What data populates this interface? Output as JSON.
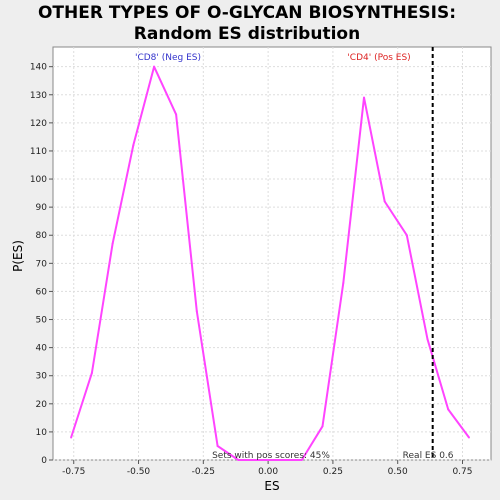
{
  "chart_data": {
    "type": "line",
    "title_lines": [
      "OTHER TYPES OF O-GLYCAN BIOSYNTHESIS:",
      "Random ES distribution"
    ],
    "xlabel": "ES",
    "ylabel": "P(ES)",
    "xlim": [
      -0.83,
      0.86
    ],
    "ylim": [
      0,
      147
    ],
    "x_ticks": [
      -0.75,
      -0.5,
      -0.25,
      0.0,
      0.25,
      0.5,
      0.75
    ],
    "x_tick_labels": [
      "-0.75",
      "-0.50",
      "-0.25",
      "0.00",
      "0.25",
      "0.50",
      "0.75"
    ],
    "y_ticks": [
      0,
      10,
      20,
      30,
      40,
      50,
      60,
      70,
      80,
      90,
      100,
      110,
      120,
      130,
      140
    ],
    "y_tick_labels": [
      "0",
      "10",
      "20",
      "30",
      "40",
      "50",
      "60",
      "70",
      "80",
      "90",
      "100",
      "110",
      "120",
      "130",
      "140"
    ],
    "grid": true,
    "series": [
      {
        "color": "#ff44ff",
        "x": [
          -0.76,
          -0.68,
          -0.6,
          -0.52,
          -0.44,
          -0.355,
          -0.275,
          -0.195,
          -0.115,
          0.13,
          0.21,
          0.29,
          0.37,
          0.45,
          0.535,
          0.615,
          0.695,
          0.775
        ],
        "y": [
          8,
          31,
          77,
          112,
          140,
          123,
          53,
          5,
          0,
          0,
          12,
          63,
          129,
          92,
          80,
          43,
          18,
          8
        ]
      }
    ],
    "real_es": {
      "x": 0.635,
      "label": "Real ES 0.6",
      "color": "#000000"
    },
    "annotations": {
      "neg_label": "'CD8' (Neg ES)",
      "neg_color": "#3333cc",
      "pos_label": "'CD4' (Pos ES)",
      "pos_color": "#dd2222",
      "bottom_text": "Sets with pos scores: 45%"
    }
  }
}
